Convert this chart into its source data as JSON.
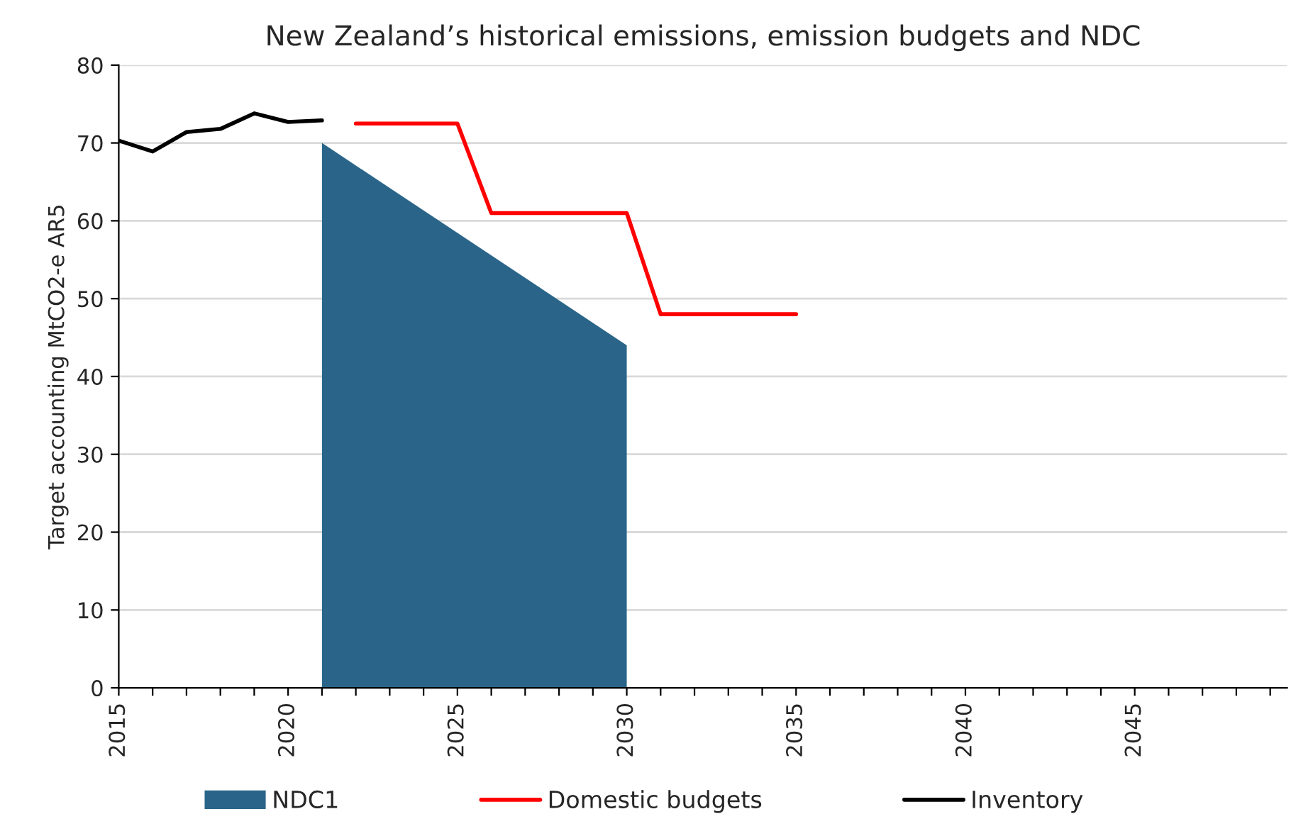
{
  "chart_data": {
    "type": "line",
    "title": "New Zealand’s historical emissions, emission budgets and NDC",
    "ylabel": "Target accounting MtCO2-e AR5",
    "series": [
      {
        "name": "NDC1",
        "type": "area",
        "color": "#2a6589",
        "x": [
          2021,
          2030
        ],
        "values": [
          70,
          44
        ]
      },
      {
        "name": "Domestic budgets",
        "color": "#ff0000",
        "x": [
          2022,
          2025,
          2026,
          2030,
          2031,
          2035
        ],
        "values": [
          72.5,
          72.5,
          61,
          61,
          48,
          48
        ]
      },
      {
        "name": "Inventory",
        "color": "#000000",
        "x": [
          2015,
          2016,
          2017,
          2018,
          2019,
          2020,
          2021
        ],
        "values": [
          70.3,
          68.9,
          71.4,
          71.8,
          73.8,
          72.7,
          72.9
        ]
      }
    ],
    "xlim": [
      2015,
      2049.5
    ],
    "xticks": [
      2015,
      {
        "value": 2016,
        "label": null
      },
      {
        "value": 2017,
        "label": null
      },
      {
        "value": 2018,
        "label": null
      },
      {
        "value": 2019,
        "label": null
      },
      2020,
      {
        "value": 2021,
        "label": null
      },
      {
        "value": 2022,
        "label": null
      },
      {
        "value": 2023,
        "label": null
      },
      {
        "value": 2024,
        "label": null
      },
      2025,
      {
        "value": 2026,
        "label": null
      },
      {
        "value": 2027,
        "label": null
      },
      {
        "value": 2028,
        "label": null
      },
      {
        "value": 2029,
        "label": null
      },
      2030,
      {
        "value": 2031,
        "label": null
      },
      {
        "value": 2032,
        "label": null
      },
      {
        "value": 2033,
        "label": null
      },
      {
        "value": 2034,
        "label": null
      },
      2035,
      {
        "value": 2036,
        "label": null
      },
      {
        "value": 2037,
        "label": null
      },
      {
        "value": 2038,
        "label": null
      },
      {
        "value": 2039,
        "label": null
      },
      2040,
      {
        "value": 2041,
        "label": null
      },
      {
        "value": 2042,
        "label": null
      },
      {
        "value": 2043,
        "label": null
      },
      {
        "value": 2044,
        "label": null
      },
      2045,
      {
        "value": 2046,
        "label": null
      },
      {
        "value": 2047,
        "label": null
      },
      {
        "value": 2048,
        "label": null
      },
      {
        "value": 2049,
        "label": null
      }
    ],
    "ylim": [
      0,
      80
    ],
    "yticks": [
      0,
      10,
      20,
      30,
      40,
      50,
      60,
      70,
      80
    ],
    "grid": "y",
    "legend": "bottom"
  }
}
